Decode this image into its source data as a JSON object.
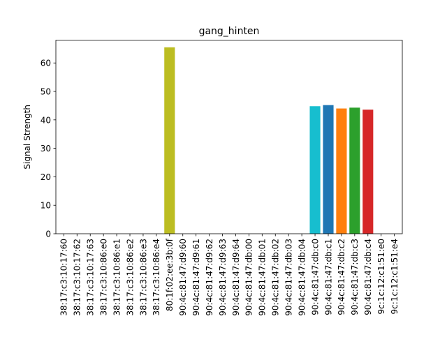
{
  "chart_data": {
    "type": "bar",
    "title": "gang_hinten",
    "xlabel": "",
    "ylabel": "Signal Strength",
    "ylim": [
      0,
      68
    ],
    "yticks": [
      0,
      10,
      20,
      30,
      40,
      50,
      60
    ],
    "grid": false,
    "categories": [
      "38:17:c3:10:17:60",
      "38:17:c3:10:17:62",
      "38:17:c3:10:17:63",
      "38:17:c3:10:86:e0",
      "38:17:c3:10:86:e1",
      "38:17:c3:10:86:e2",
      "38:17:c3:10:86:e3",
      "38:17:c3:10:86:e4",
      "80:1f:02:ee:3b:0f",
      "90:4c:81:47:d9:60",
      "90:4c:81:47:d9:61",
      "90:4c:81:47:d9:62",
      "90:4c:81:47:d9:63",
      "90:4c:81:47:d9:64",
      "90:4c:81:47:db:00",
      "90:4c:81:47:db:01",
      "90:4c:81:47:db:02",
      "90:4c:81:47:db:03",
      "90:4c:81:47:db:04",
      "90:4c:81:47:db:c0",
      "90:4c:81:47:db:c1",
      "90:4c:81:47:db:c2",
      "90:4c:81:47:db:c3",
      "90:4c:81:47:db:c4",
      "9c:1c:12:c1:51:e0",
      "9c:1c:12:c1:51:e4"
    ],
    "values": [
      0,
      0,
      0,
      0,
      0,
      0,
      0,
      0,
      65.5,
      0,
      0,
      0,
      0,
      0,
      0,
      0,
      0,
      0,
      0,
      44.8,
      45.2,
      44.0,
      44.3,
      43.6,
      0,
      0
    ],
    "colors": [
      "#1f77b4",
      "#ff7f0e",
      "#2ca02c",
      "#d62728",
      "#9467bd",
      "#8c564b",
      "#e377c2",
      "#7f7f7f",
      "#bcbd22",
      "#17becf",
      "#1f77b4",
      "#ff7f0e",
      "#2ca02c",
      "#d62728",
      "#9467bd",
      "#8c564b",
      "#e377c2",
      "#7f7f7f",
      "#bcbd22",
      "#17becf",
      "#1f77b4",
      "#ff7f0e",
      "#2ca02c",
      "#d62728",
      "#9467bd",
      "#8c564b"
    ]
  }
}
